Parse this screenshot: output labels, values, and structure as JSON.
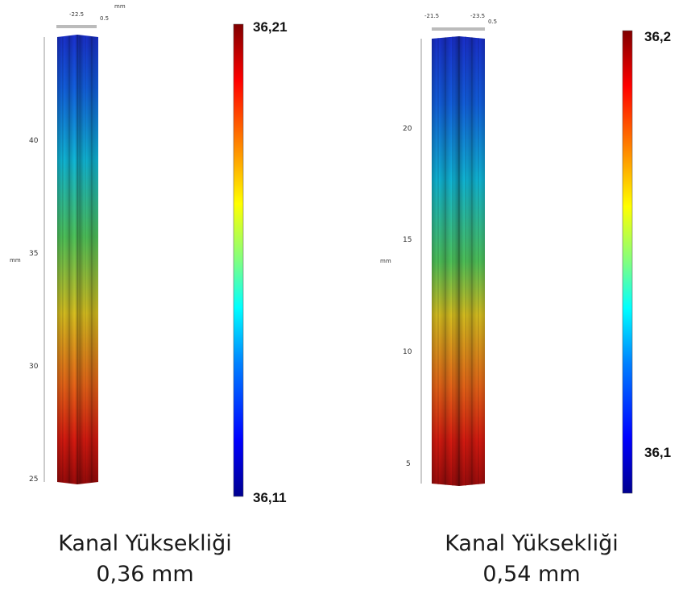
{
  "left": {
    "top_axis": {
      "label_a": "-22.5",
      "label_b": "0.5",
      "unit": "mm"
    },
    "y_axis": {
      "unit": "mm",
      "ticks": [
        "40",
        "35",
        "30",
        "25"
      ]
    },
    "colorbar": {
      "max": "36,21",
      "min": "36,11"
    },
    "caption": {
      "line1": "Kanal Yüksekliği",
      "line2": "0,36 mm"
    },
    "gradient": "hot-bottom"
  },
  "right": {
    "top_axis": {
      "label_a": "-21.5",
      "label_b": "-23.5",
      "label_c": "0.5"
    },
    "y_axis": {
      "unit": "mm",
      "ticks": [
        "20",
        "15",
        "10",
        "5"
      ]
    },
    "colorbar": {
      "max": "36,2",
      "min": "36,1"
    },
    "caption": {
      "line1": "Kanal Yüksekliği",
      "line2": "0,54 mm"
    },
    "gradient": "hot-bottom"
  },
  "colors": {
    "jet": [
      "#00008f",
      "#0000ff",
      "#0080ff",
      "#00ffff",
      "#80ff80",
      "#ffff00",
      "#ff8000",
      "#ff0000",
      "#800000"
    ]
  }
}
